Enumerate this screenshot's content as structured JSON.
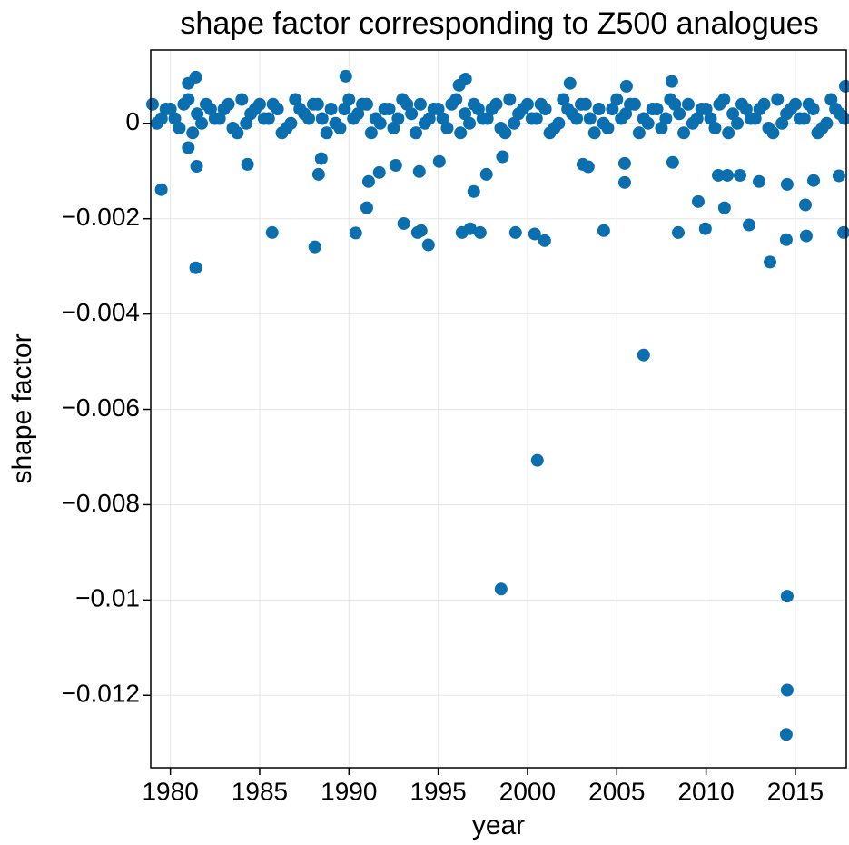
{
  "chart_data": {
    "type": "scatter",
    "title": "shape factor corresponding to Z500 analogues",
    "xlabel": "year",
    "ylabel": "shape factor",
    "xlim": [
      1978.9,
      2017.85
    ],
    "ylim": [
      -0.01352,
      0.00154
    ],
    "xticks": [
      1980,
      1985,
      1990,
      1995,
      2000,
      2005,
      2010,
      2015
    ],
    "yticks": [
      0,
      {
        "value": -0.002,
        "label": "−0.002"
      },
      {
        "value": -0.004,
        "label": "−0.004"
      },
      {
        "value": -0.006,
        "label": "−0.006"
      },
      {
        "value": -0.008,
        "label": "−0.008"
      },
      {
        "value": -0.01,
        "label": "−0.01"
      },
      {
        "value": -0.012,
        "label": "−0.012"
      }
    ],
    "grid": true,
    "series": [
      {
        "color": "#0a6eaf",
        "x": [
          1979,
          1979.5,
          1980,
          1980.5,
          1981,
          1981.5,
          1982,
          1982.5,
          1983,
          1983.5,
          1984,
          1984.5,
          1985,
          1985.5,
          1986,
          1986.5,
          1987,
          1987.5,
          1988,
          1988.5,
          1989,
          1989.5,
          1990,
          1990.5,
          1991,
          1991.5,
          1992,
          1992.5,
          1993,
          1993.5,
          1994,
          1994.5,
          1995,
          1995.5,
          1996,
          1996.5,
          1997,
          1997.5,
          1998,
          1998.5,
          1999,
          1999.5,
          2000,
          2000.5,
          2001,
          2001.5,
          2002,
          2002.5,
          2003,
          2003.5,
          2004,
          2004.5,
          2005,
          2005.5,
          2006,
          2006.5,
          2007,
          2007.5,
          2008,
          2008.5,
          2009,
          2009.5,
          2010,
          2010.5,
          2011,
          2011.5,
          2012,
          2012.5,
          2013,
          2013.5,
          2014,
          2014.5,
          2015,
          2015.5,
          2016,
          2016.5,
          2017,
          2017.5
        ],
        "values": [
          0.0004,
          0.0001,
          0.0003,
          -0.0001,
          0.0005,
          0.0002,
          0.0004,
          0.0001,
          0.0003,
          -0.0001,
          0.0005,
          0.0002,
          0.0004,
          0.0001,
          0.0003,
          -0.0001,
          0.0005,
          0.0002,
          0.0004,
          0.0001,
          0.0003,
          -0.0001,
          0.0005,
          0.0002,
          0.0004,
          0.0001,
          0.0003,
          -0.0001,
          0.0005,
          0.0002,
          0.0004,
          0.0001,
          0.0003,
          -0.0001,
          0.0005,
          0.0002,
          0.0004,
          0.0001,
          0.0003,
          -0.0001,
          0.0005,
          0.0002,
          0.0004,
          0.0001,
          0.0003,
          -0.0001,
          0.0005,
          0.0002,
          0.0004,
          0.0001,
          0.0003,
          -0.0001,
          0.0005,
          0.0002,
          0.0004,
          0.0001,
          0.0003,
          -0.0001,
          0.0005,
          0.0002,
          0.0004,
          0.0001,
          0.0003,
          -0.0001,
          0.0005,
          0.0002,
          0.0004,
          0.0001,
          0.0003,
          -0.0001,
          0.0005,
          0.0002,
          0.0004,
          0.0001,
          0.0003,
          -0.0001,
          0.0005,
          0.0002
        ]
      },
      {
        "color": "#0a6eaf",
        "x": [
          1979.25,
          1979.75,
          1980.25,
          1980.75,
          1981.25,
          1981.75,
          1982.25,
          1982.75,
          1983.25,
          1983.75,
          1984.25,
          1984.75,
          1985.25,
          1985.75,
          1986.25,
          1986.75,
          1987.25,
          1987.75,
          1988.25,
          1988.75,
          1989.25,
          1989.75,
          1990.25,
          1990.75,
          1991.25,
          1991.75,
          1992.25,
          1992.75,
          1993.25,
          1993.75,
          1994.25,
          1994.75,
          1995.25,
          1995.75,
          1996.25,
          1996.75,
          1997.25,
          1997.75,
          1998.25,
          1998.75,
          1999.25,
          1999.75,
          2000.25,
          2000.75,
          2001.25,
          2001.75,
          2002.25,
          2002.75,
          2003.25,
          2003.75,
          2004.25,
          2004.75,
          2005.25,
          2005.75,
          2006.25,
          2006.75,
          2007.25,
          2007.75,
          2008.25,
          2008.75,
          2009.25,
          2009.75,
          2010.25,
          2010.75,
          2011.25,
          2011.75,
          2012.25,
          2012.75,
          2013.25,
          2013.75,
          2014.25,
          2014.75,
          2015.25,
          2015.75,
          2016.25,
          2016.75,
          2017.25,
          2017.75
        ],
        "values": [
          0.0,
          0.0003,
          0.0001,
          0.0004,
          -0.0002,
          0.0,
          0.0003,
          0.0001,
          0.0004,
          -0.0002,
          0.0,
          0.0003,
          0.0001,
          0.0004,
          -0.0002,
          0.0,
          0.0003,
          0.0001,
          0.0004,
          -0.0002,
          0.0,
          0.0003,
          0.0001,
          0.0004,
          -0.0002,
          0.0,
          0.0003,
          0.0001,
          0.0004,
          -0.0002,
          0.0,
          0.0003,
          0.0001,
          0.0004,
          -0.0002,
          0.0,
          0.0003,
          0.0001,
          0.0004,
          -0.0002,
          0.0,
          0.0003,
          0.0001,
          0.0004,
          -0.0002,
          0.0,
          0.0003,
          0.0001,
          0.0004,
          -0.0002,
          0.0,
          0.0003,
          0.0001,
          0.0004,
          -0.0002,
          0.0,
          0.0003,
          0.0001,
          0.0004,
          -0.0002,
          0.0,
          0.0003,
          0.0001,
          0.0004,
          -0.0002,
          0.0,
          0.0003,
          0.0001,
          0.0004,
          -0.0002,
          0.0,
          0.0003,
          0.0001,
          0.0004,
          -0.0002,
          0.0,
          0.0003,
          0.0001
        ]
      },
      {
        "color": "#0a6eaf",
        "x": [
          1979.49,
          1981.42,
          1981.47,
          1981.0,
          1984.32,
          1985.7,
          1988.09,
          1988.3,
          1988.45,
          1990.38,
          1991.0,
          1991.1,
          1991.7,
          1992.62,
          1993.07,
          1993.84,
          1994.04,
          1993.94,
          1994.45,
          1995.06,
          1996.33,
          1996.79,
          1997.35,
          1996.99,
          1997.7,
          1998.52,
          1999.33,
          1998.6,
          2000.4,
          2000.55,
          2000.96,
          2003.1,
          2003.4,
          2004.27,
          2005.44,
          2005.44,
          2006.5,
          2008.13,
          2008.44,
          2009.56,
          2009.96,
          2010.68,
          2011.03,
          2011.19,
          2011.9,
          2012.41,
          2012.97,
          2013.58,
          2014.54,
          2014.49,
          2014.54,
          2014.54,
          2014.49,
          2015.56,
          2015.61,
          2016.02,
          2017.44,
          2017.7,
          1981.42,
          1981.0,
          1989.82,
          1996.53,
          1996.17,
          2002.38,
          2005.54,
          2008.08,
          2017.8
        ],
        "values": [
          -0.00139,
          -0.00303,
          -0.0009,
          -0.00051,
          -0.00086,
          -0.00229,
          -0.00259,
          -0.00107,
          -0.00074,
          -0.0023,
          -0.00177,
          -0.00122,
          -0.00103,
          -0.00088,
          -0.0021,
          -0.00229,
          -0.00225,
          -0.00101,
          -0.00255,
          -0.0008,
          -0.00229,
          -0.00221,
          -0.00229,
          -0.00143,
          -0.00107,
          -0.00977,
          -0.00229,
          -0.0007,
          -0.00232,
          -0.00707,
          -0.00246,
          -0.00086,
          -0.00091,
          -0.00225,
          -0.00084,
          -0.00124,
          -0.00486,
          -0.00082,
          -0.00229,
          -0.00164,
          -0.00221,
          -0.00109,
          -0.00177,
          -0.00109,
          -0.00109,
          -0.00213,
          -0.00122,
          -0.00291,
          -0.00128,
          -0.00244,
          -0.00992,
          -0.01189,
          -0.01282,
          -0.00171,
          -0.00236,
          -0.0012,
          -0.0011,
          -0.00229,
          0.00097,
          0.00084,
          0.00099,
          0.00093,
          0.0008,
          0.00084,
          0.00078,
          0.00088,
          0.00078
        ]
      }
    ]
  }
}
